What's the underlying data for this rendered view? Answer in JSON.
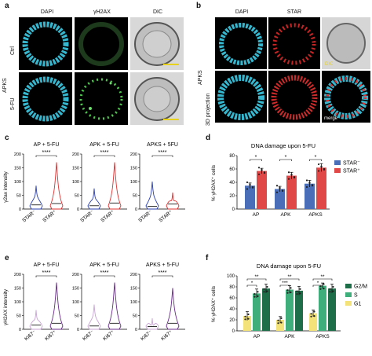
{
  "panels": {
    "a": {
      "label": "a",
      "cols": [
        "DAPI",
        "γH2AX",
        "DIC"
      ],
      "group_label": "APKS",
      "rows": [
        "Ctrl",
        "5-FU"
      ]
    },
    "b": {
      "label": "b",
      "cols": [
        "DAPI",
        "STAR"
      ],
      "group_label": "APKS",
      "row_label": "3D projection",
      "tags": [
        "DIC",
        "merge"
      ]
    },
    "c": {
      "label": "c"
    },
    "d": {
      "label": "d"
    },
    "e": {
      "label": "e"
    },
    "f": {
      "label": "f"
    }
  },
  "colors": {
    "dapi": "#35b8cf",
    "gh2ax": "#4fc94f",
    "star": "#e02a2a",
    "blue_violin": "#2a3fb0",
    "red_violin": "#e03030",
    "ki67_neg": "#c9a3d6",
    "ki67_pos": "#6a2a8a",
    "bar_starneg": "#4a6fb8",
    "bar_starpos": "#e04848",
    "g2m": "#1f6e4a",
    "s": "#3fae7a",
    "g1": "#f3e27a"
  },
  "chart_data": [
    {
      "id": "c",
      "type": "violin",
      "ylabel": "γ2ax intensity",
      "subplots": [
        {
          "title": "AP + 5-FU",
          "categories": [
            "STAR⁻",
            "STAR⁺"
          ],
          "sig": "****",
          "yticks": [
            "0",
            "50",
            "100",
            "150",
            "200"
          ],
          "ylim": [
            0,
            200
          ],
          "max": [
            85,
            170
          ],
          "median": [
            15,
            20
          ]
        },
        {
          "title": "APK + 5-FU",
          "categories": [
            "STAR⁻",
            "STAR⁺"
          ],
          "sig": "****",
          "yticks": [
            "0",
            "50",
            "100",
            "150",
            "200"
          ],
          "ylim": [
            0,
            200
          ],
          "max": [
            75,
            170
          ],
          "median": [
            12,
            22
          ]
        },
        {
          "title": "APKS + 5FU",
          "categories": [
            "STAR⁻",
            "STAR⁺"
          ],
          "sig": "****",
          "yticks": [
            "0",
            "50",
            "100",
            "150",
            "200"
          ],
          "ylim": [
            0,
            200
          ],
          "max": [
            100,
            60
          ],
          "median": [
            10,
            18
          ]
        }
      ]
    },
    {
      "id": "d",
      "type": "bar",
      "title": "DNA damage upon 5-FU",
      "ylabel": "% γH2AX⁺ cells",
      "categories": [
        "AP",
        "APK",
        "APKS"
      ],
      "yticks": [
        "0",
        "20",
        "40",
        "60",
        "80"
      ],
      "ylim": [
        0,
        80
      ],
      "series": [
        {
          "name": "STAR⁻",
          "values": [
            35,
            30,
            38
          ],
          "err": [
            4,
            4,
            5
          ]
        },
        {
          "name": "STAR⁺",
          "values": [
            57,
            50,
            62
          ],
          "err": [
            4,
            5,
            6
          ]
        }
      ],
      "sig": [
        "*",
        "*",
        "*"
      ],
      "legend": "top-right"
    },
    {
      "id": "e",
      "type": "violin",
      "ylabel": "γH2AX intensity",
      "subplots": [
        {
          "title": "AP + 5-FU",
          "categories": [
            "Ki67⁻",
            "Ki67⁺"
          ],
          "sig": "****",
          "yticks": [
            "0",
            "50",
            "100",
            "150",
            "200"
          ],
          "ylim": [
            0,
            200
          ],
          "max": [
            70,
            170
          ],
          "median": [
            15,
            22
          ]
        },
        {
          "title": "APK + 5-FU",
          "categories": [
            "Ki67⁻",
            "Ki67⁺"
          ],
          "sig": "****",
          "yticks": [
            "0",
            "50",
            "100",
            "150",
            "200"
          ],
          "ylim": [
            0,
            200
          ],
          "max": [
            90,
            170
          ],
          "median": [
            12,
            22
          ]
        },
        {
          "title": "APKS + 5-FU",
          "categories": [
            "Ki67⁻",
            "Ki67⁺"
          ],
          "sig": "****",
          "yticks": [
            "0",
            "50",
            "100",
            "150",
            "200"
          ],
          "ylim": [
            0,
            200
          ],
          "max": [
            40,
            150
          ],
          "median": [
            10,
            22
          ]
        }
      ]
    },
    {
      "id": "f",
      "type": "bar",
      "title": "DNA damage upon 5-FU",
      "ylabel": "% γH2AX⁺ cells",
      "categories": [
        "AP",
        "APK",
        "APKS"
      ],
      "yticks": [
        "0",
        "20",
        "40",
        "60",
        "80",
        "100"
      ],
      "ylim": [
        0,
        100
      ],
      "series": [
        {
          "name": "G1",
          "values": [
            27,
            20,
            32
          ],
          "err": [
            8,
            6,
            6
          ]
        },
        {
          "name": "S",
          "values": [
            68,
            75,
            82
          ],
          "err": [
            8,
            7,
            5
          ]
        },
        {
          "name": "G2/M",
          "values": [
            77,
            73,
            77
          ],
          "err": [
            8,
            8,
            8
          ]
        }
      ],
      "legend_order": [
        "G2/M",
        "S",
        "G1"
      ],
      "sig_labels": [
        "**",
        "*",
        "**",
        "***",
        "**",
        "*"
      ],
      "legend": "right"
    }
  ]
}
